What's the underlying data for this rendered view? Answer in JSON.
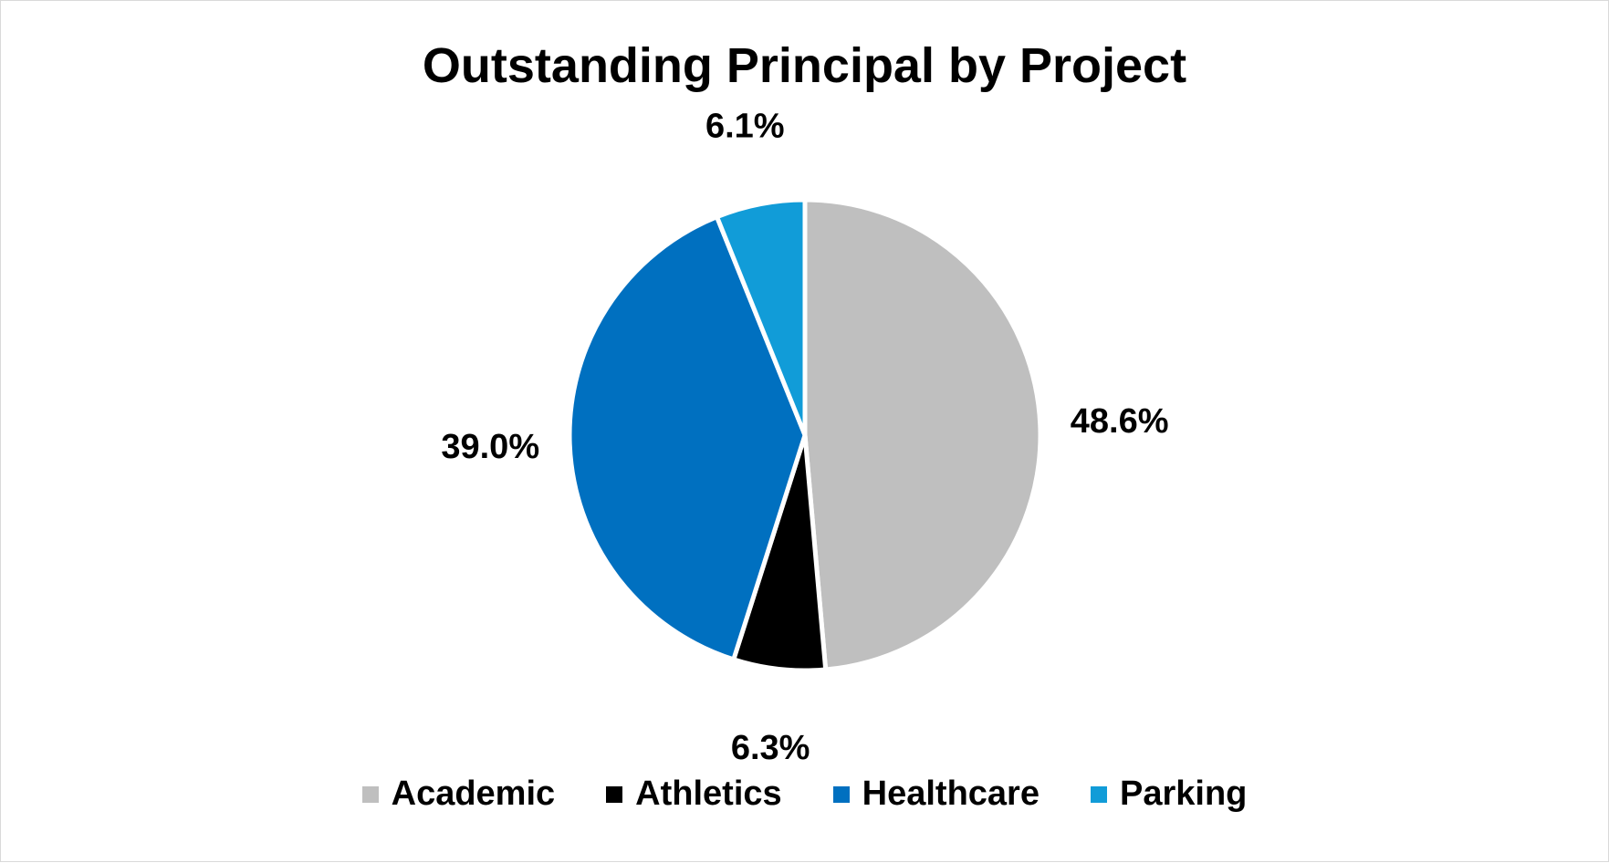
{
  "chart_data": {
    "type": "pie",
    "title": "Outstanding Principal by Project",
    "categories": [
      "Academic",
      "Athletics",
      "Healthcare",
      "Parking"
    ],
    "values": [
      48.6,
      6.3,
      39.0,
      6.1
    ],
    "data_labels": [
      "48.6%",
      "6.3%",
      "39.0%",
      "6.1%"
    ],
    "colors": [
      "#BFBFBF",
      "#000000",
      "#0070C0",
      "#119CD8"
    ],
    "start_angle": "12 o'clock",
    "direction": "clockwise",
    "legend_position": "bottom"
  }
}
